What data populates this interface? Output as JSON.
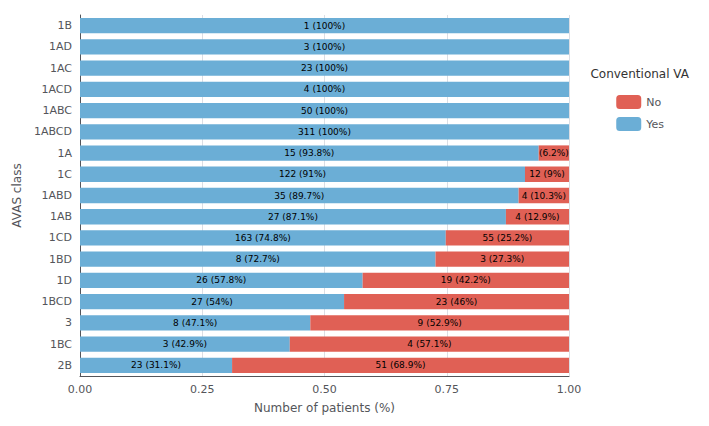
{
  "chart_data": {
    "type": "bar",
    "orientation": "horizontal",
    "stacked": true,
    "data_labels": true,
    "grid": true,
    "legend": "right",
    "xlabel": "Number of patients (%)",
    "ylabel": "AVAS class",
    "legend_title": "Conventional VA",
    "categories": [
      "2B",
      "1BC",
      "3",
      "1BCD",
      "1D",
      "1BD",
      "1CD",
      "1AB",
      "1ABD",
      "1C",
      "1A",
      "1ABCD",
      "1ABC",
      "1ACD",
      "1AC",
      "1AD",
      "1B"
    ],
    "series": [
      {
        "name": "Yes",
        "color": "#6baed6",
        "values": [
          0.311,
          0.429,
          0.471,
          0.54,
          0.578,
          0.727,
          0.748,
          0.871,
          0.897,
          0.91,
          0.938,
          1.0,
          1.0,
          1.0,
          1.0,
          1.0,
          1.0
        ],
        "value_labels": [
          "23 (31.1%)",
          "3 (42.9%)",
          "8 (47.1%)",
          "27 (54%)",
          "26 (57.8%)",
          "8 (72.7%)",
          "163 (74.8%)",
          "27 (87.1%)",
          "35 (89.7%)",
          "122 (91%)",
          "15 (93.8%)",
          "311 (100%)",
          "50 (100%)",
          "4 (100%)",
          "23 (100%)",
          "3 (100%)",
          "1 (100%)"
        ]
      },
      {
        "name": "No",
        "color": "#e06055",
        "values": [
          0.689,
          0.571,
          0.529,
          0.46,
          0.422,
          0.273,
          0.252,
          0.129,
          0.103,
          0.09,
          0.062,
          0.0,
          0.0,
          0.0,
          0.0,
          0.0,
          0.0
        ],
        "value_labels": [
          "51 (68.9%)",
          "4 (57.1%)",
          "9 (52.9%)",
          "23 (46%)",
          "19 (42.2%)",
          "3 (27.3%)",
          "55 (25.2%)",
          "4 (12.9%)",
          "4 (10.3%)",
          "12 (9%)",
          "(6.2%)",
          null,
          null,
          null,
          null,
          null,
          null
        ]
      }
    ],
    "xlim": [
      0.0,
      1.0
    ],
    "xticks": [
      {
        "value": 0.0,
        "label": "0.00"
      },
      {
        "value": 0.25,
        "label": "0.25"
      },
      {
        "value": 0.5,
        "label": "0.50"
      },
      {
        "value": 0.75,
        "label": "0.75"
      },
      {
        "value": 1.0,
        "label": "1.00"
      }
    ]
  }
}
